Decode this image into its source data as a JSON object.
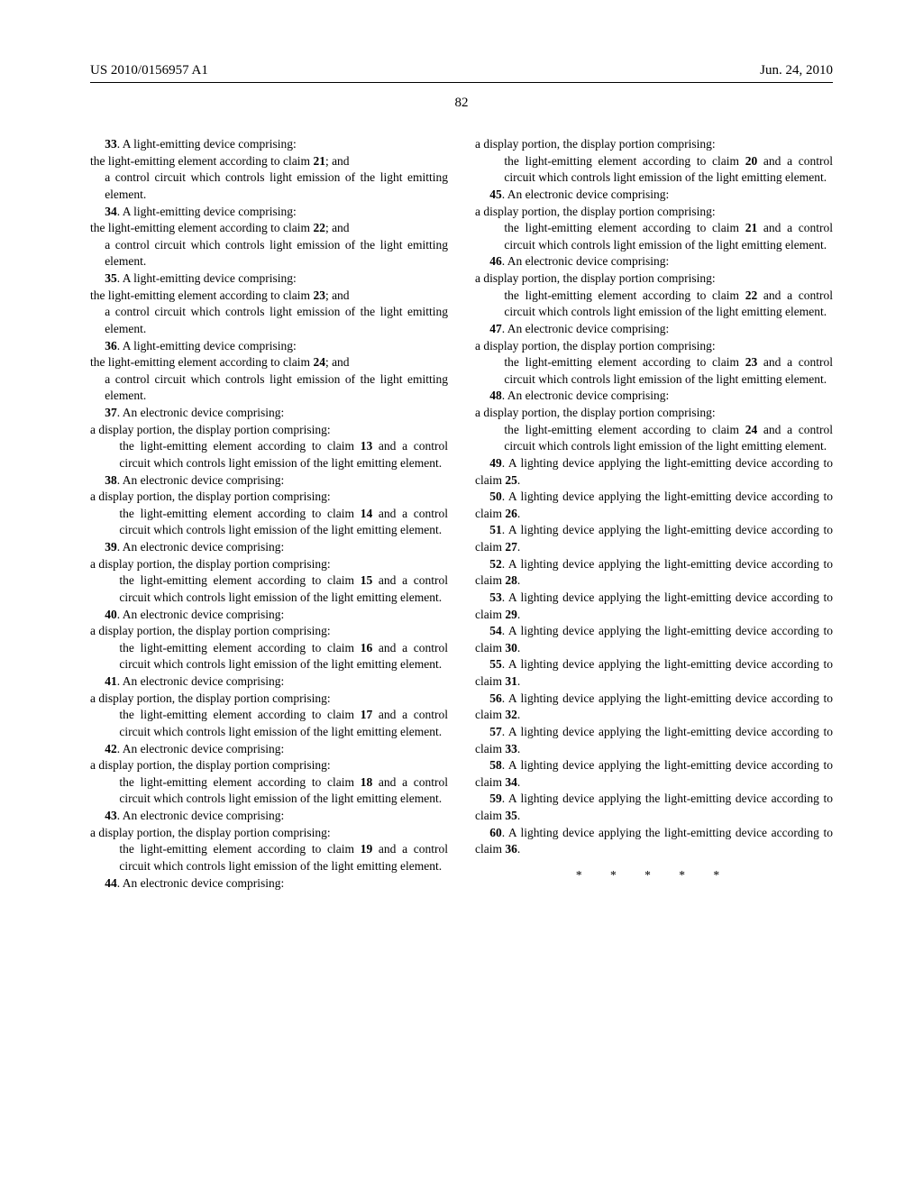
{
  "header": {
    "pub_number": "US 2010/0156957 A1",
    "pub_date": "Jun. 24, 2010"
  },
  "page_number": "82",
  "end_marks": "* * * * *",
  "claims": [
    {
      "n": "33",
      "lead": ". A light-emitting device comprising:",
      "body": [
        {
          "t": "the light-emitting element according to claim ",
          "bref": "21",
          "after": "; and",
          "cls": "claim-body"
        },
        {
          "t": "a control circuit which controls light emission of the light emitting element.",
          "cls": "claim-sub"
        }
      ]
    },
    {
      "n": "34",
      "lead": ". A light-emitting device comprising:",
      "body": [
        {
          "t": "the light-emitting element according to claim ",
          "bref": "22",
          "after": "; and",
          "cls": "claim-body"
        },
        {
          "t": "a control circuit which controls light emission of the light emitting element.",
          "cls": "claim-sub"
        }
      ]
    },
    {
      "n": "35",
      "lead": ". A light-emitting device comprising:",
      "body": [
        {
          "t": "the light-emitting element according to claim ",
          "bref": "23",
          "after": "; and",
          "cls": "claim-body"
        },
        {
          "t": "a control circuit which controls light emission of the light emitting element.",
          "cls": "claim-sub"
        }
      ]
    },
    {
      "n": "36",
      "lead": ". A light-emitting device comprising:",
      "body": [
        {
          "t": "the light-emitting element according to claim ",
          "bref": "24",
          "after": "; and",
          "cls": "claim-body"
        },
        {
          "t": "a control circuit which controls light emission of the light emitting element.",
          "cls": "claim-sub"
        }
      ]
    },
    {
      "n": "37",
      "lead": ". An electronic device comprising:",
      "body": [
        {
          "t": "a display portion, the display portion comprising:",
          "cls": "claim-body"
        },
        {
          "t": "the light-emitting element according to claim ",
          "bref": "13",
          "after": " and a control circuit which controls light emission of the light emitting element.",
          "cls": "claim-subsub"
        }
      ]
    },
    {
      "n": "38",
      "lead": ". An electronic device comprising:",
      "body": [
        {
          "t": "a display portion, the display portion comprising:",
          "cls": "claim-body"
        },
        {
          "t": "the light-emitting element according to claim ",
          "bref": "14",
          "after": " and a control circuit which controls light emission of the light emitting element.",
          "cls": "claim-subsub"
        }
      ]
    },
    {
      "n": "39",
      "lead": ". An electronic device comprising:",
      "body": [
        {
          "t": "a display portion, the display portion comprising:",
          "cls": "claim-body"
        },
        {
          "t": "the light-emitting element according to claim ",
          "bref": "15",
          "after": " and a control circuit which controls light emission of the light emitting element.",
          "cls": "claim-subsub"
        }
      ]
    },
    {
      "n": "40",
      "lead": ". An electronic device comprising:",
      "body": [
        {
          "t": "a display portion, the display portion comprising:",
          "cls": "claim-body"
        },
        {
          "t": "the light-emitting element according to claim ",
          "bref": "16",
          "after": " and a control circuit which controls light emission of the light emitting element.",
          "cls": "claim-subsub"
        }
      ]
    },
    {
      "n": "41",
      "lead": ". An electronic device comprising:",
      "body": [
        {
          "t": "a display portion, the display portion comprising:",
          "cls": "claim-body"
        },
        {
          "t": "the light-emitting element according to claim ",
          "bref": "17",
          "after": " and a control circuit which controls light emission of the light emitting element.",
          "cls": "claim-subsub"
        }
      ]
    },
    {
      "n": "42",
      "lead": ". An electronic device comprising:",
      "body": [
        {
          "t": "a display portion, the display portion comprising:",
          "cls": "claim-body"
        },
        {
          "t": "the light-emitting element according to claim ",
          "bref": "18",
          "after": " and a control circuit which controls light emission of the light emitting element.",
          "cls": "claim-subsub"
        }
      ]
    },
    {
      "n": "43",
      "lead": ". An electronic device comprising:",
      "body": [
        {
          "t": "a display portion, the display portion comprising:",
          "cls": "claim-body"
        },
        {
          "t": "the light-emitting element according to claim ",
          "bref": "19",
          "after": " and a control circuit which controls light emission of the light emitting element.",
          "cls": "claim-subsub"
        }
      ]
    },
    {
      "n": "44",
      "lead": ". An electronic device comprising:",
      "body": [
        {
          "t": "a display portion, the display portion comprising:",
          "cls": "claim-body"
        },
        {
          "t": "the light-emitting element according to claim ",
          "bref": "20",
          "after": " and a control circuit which controls light emission of the light emitting element.",
          "cls": "claim-subsub"
        }
      ]
    },
    {
      "n": "45",
      "lead": ". An electronic device comprising:",
      "body": [
        {
          "t": "a display portion, the display portion comprising:",
          "cls": "claim-body"
        },
        {
          "t": "the light-emitting element according to claim ",
          "bref": "21",
          "after": " and a control circuit which controls light emission of the light emitting element.",
          "cls": "claim-subsub"
        }
      ]
    },
    {
      "n": "46",
      "lead": ". An electronic device comprising:",
      "body": [
        {
          "t": "a display portion, the display portion comprising:",
          "cls": "claim-body"
        },
        {
          "t": "the light-emitting element according to claim ",
          "bref": "22",
          "after": " and a control circuit which controls light emission of the light emitting element.",
          "cls": "claim-subsub"
        }
      ]
    },
    {
      "n": "47",
      "lead": ". An electronic device comprising:",
      "body": [
        {
          "t": "a display portion, the display portion comprising:",
          "cls": "claim-body"
        },
        {
          "t": "the light-emitting element according to claim ",
          "bref": "23",
          "after": " and a control circuit which controls light emission of the light emitting element.",
          "cls": "claim-subsub"
        }
      ]
    },
    {
      "n": "48",
      "lead": ". An electronic device comprising:",
      "body": [
        {
          "t": "a display portion, the display portion comprising:",
          "cls": "claim-body"
        },
        {
          "t": "the light-emitting element according to claim ",
          "bref": "24",
          "after": " and a control circuit which controls light emission of the light emitting element.",
          "cls": "claim-subsub"
        }
      ]
    },
    {
      "n": "49",
      "lead": ". A lighting device applying the light-emitting device according to claim ",
      "bref": "25",
      "after": ".",
      "inline": true
    },
    {
      "n": "50",
      "lead": ". A lighting device applying the light-emitting device according to claim ",
      "bref": "26",
      "after": ".",
      "inline": true
    },
    {
      "n": "51",
      "lead": ". A lighting device applying the light-emitting device according to claim ",
      "bref": "27",
      "after": ".",
      "inline": true
    },
    {
      "n": "52",
      "lead": ". A lighting device applying the light-emitting device according to claim ",
      "bref": "28",
      "after": ".",
      "inline": true
    },
    {
      "n": "53",
      "lead": ". A lighting device applying the light-emitting device according to claim ",
      "bref": "29",
      "after": ".",
      "inline": true
    },
    {
      "n": "54",
      "lead": ". A lighting device applying the light-emitting device according to claim ",
      "bref": "30",
      "after": ".",
      "inline": true
    },
    {
      "n": "55",
      "lead": ". A lighting device applying the light-emitting device according to claim ",
      "bref": "31",
      "after": ".",
      "inline": true
    },
    {
      "n": "56",
      "lead": ". A lighting device applying the light-emitting device according to claim ",
      "bref": "32",
      "after": ".",
      "inline": true
    },
    {
      "n": "57",
      "lead": ". A lighting device applying the light-emitting device according to claim ",
      "bref": "33",
      "after": ".",
      "inline": true
    },
    {
      "n": "58",
      "lead": ". A lighting device applying the light-emitting device according to claim ",
      "bref": "34",
      "after": ".",
      "inline": true
    },
    {
      "n": "59",
      "lead": ". A lighting device applying the light-emitting device according to claim ",
      "bref": "35",
      "after": ".",
      "inline": true
    },
    {
      "n": "60",
      "lead": ". A lighting device applying the light-emitting device according to claim ",
      "bref": "36",
      "after": ".",
      "inline": true
    }
  ]
}
